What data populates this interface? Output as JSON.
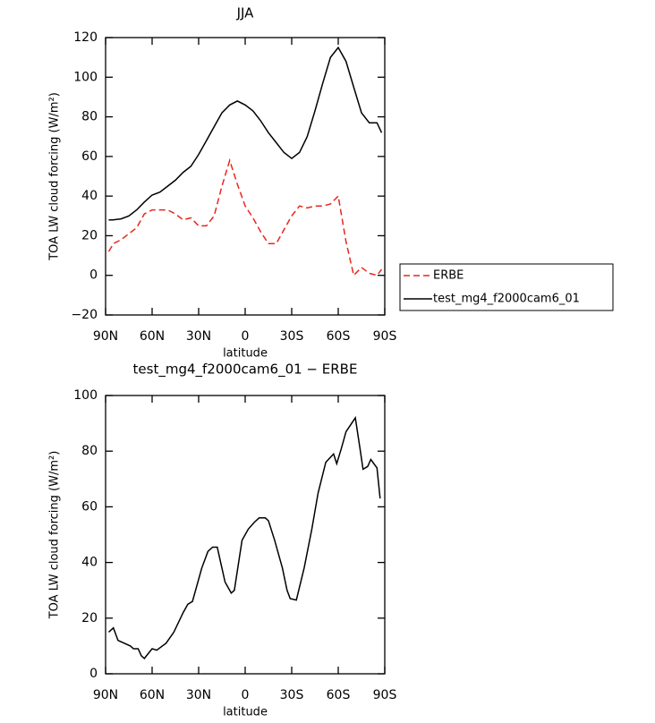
{
  "chart_data": [
    {
      "type": "line",
      "title": "JJA",
      "xlabel": "latitude",
      "ylabel": "TOA LW cloud forcing (W/m²)",
      "x": [
        88,
        85,
        80,
        75,
        70,
        65,
        60,
        55,
        50,
        45,
        40,
        35,
        30,
        25,
        20,
        15,
        10,
        5,
        0,
        -5,
        -10,
        -15,
        -20,
        -25,
        -30,
        -35,
        -40,
        -45,
        -50,
        -55,
        -60,
        -65,
        -70,
        -75,
        -80,
        -85,
        -88
      ],
      "series": [
        {
          "name": "ERBE",
          "color": "#e8261e",
          "style": "dashed",
          "values": [
            12,
            16,
            18,
            21,
            24,
            31,
            33,
            33,
            33,
            31,
            28,
            29,
            25,
            25,
            30,
            45,
            58,
            46,
            35,
            29,
            22,
            16,
            16,
            23,
            30,
            35,
            34,
            35,
            35,
            36,
            40,
            17,
            0,
            4,
            1,
            0,
            3
          ]
        },
        {
          "name": "test_mg4_f2000cam6_01",
          "color": "#000000",
          "style": "solid",
          "values": [
            28,
            28,
            28.5,
            30,
            33,
            37,
            40.5,
            42,
            45,
            48,
            52,
            55,
            61,
            68,
            75,
            82,
            86,
            88,
            86,
            83,
            78,
            72,
            67,
            62,
            59,
            62,
            70,
            83,
            97,
            110,
            115,
            108,
            95,
            82,
            77,
            77,
            72
          ]
        }
      ],
      "xlim": [
        90,
        -90
      ],
      "xticks": [
        {
          "value": 90,
          "label": "90N"
        },
        {
          "value": 60,
          "label": "60N"
        },
        {
          "value": 30,
          "label": "30N"
        },
        0,
        {
          "value": -30,
          "label": "30S"
        },
        {
          "value": -60,
          "label": "60S"
        },
        {
          "value": -90,
          "label": "90S"
        }
      ],
      "ylim": [
        -20,
        120
      ],
      "yticks": [
        {
          "value": -20,
          "label": "−20"
        },
        0,
        20,
        40,
        60,
        80,
        100,
        120
      ],
      "legend": "right"
    },
    {
      "type": "line",
      "title": "test_mg4_f2000cam6_01 − ERBE",
      "xlabel": "latitude",
      "ylabel": "TOA LW cloud forcing (W/m²)",
      "x": [
        88,
        85,
        82,
        74,
        72,
        69,
        67,
        65,
        60,
        57,
        51,
        46,
        40,
        37,
        34,
        28,
        24,
        21,
        18,
        15,
        13,
        9,
        7,
        2,
        -2,
        -6,
        -9,
        -13,
        -15,
        -19,
        -24,
        -27,
        -29,
        -33,
        -38,
        -43,
        -47,
        -52,
        -57,
        -59,
        -62,
        -65,
        -71,
        -74,
        -76,
        -79,
        -81,
        -85,
        -87
      ],
      "series": [
        {
          "name": null,
          "color": "#000000",
          "style": "solid",
          "values": [
            15,
            16.5,
            12,
            10,
            9,
            9,
            6.5,
            5.5,
            9,
            8.5,
            11,
            15,
            22,
            25,
            26,
            38,
            44,
            45.5,
            45.5,
            38,
            33,
            29,
            30,
            48,
            52,
            54.5,
            56,
            56,
            55,
            48,
            38,
            30,
            27,
            26.5,
            38,
            52,
            65,
            76,
            79,
            75.5,
            81,
            87,
            92,
            81,
            73.5,
            74.5,
            77,
            74,
            63
          ]
        }
      ],
      "xlim": [
        90,
        -90
      ],
      "xticks": [
        {
          "value": 90,
          "label": "90N"
        },
        {
          "value": 60,
          "label": "60N"
        },
        {
          "value": 30,
          "label": "30N"
        },
        0,
        {
          "value": -30,
          "label": "30S"
        },
        {
          "value": -60,
          "label": "60S"
        },
        {
          "value": -90,
          "label": "90S"
        }
      ],
      "ylim": [
        0,
        100
      ],
      "yticks": [
        0,
        20,
        40,
        60,
        80,
        100
      ]
    }
  ]
}
